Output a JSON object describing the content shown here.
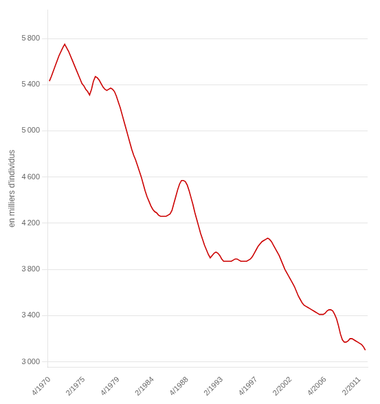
{
  "chart_data": {
    "type": "line",
    "ylabel": "en milliers d'individus",
    "color": "#cc0000",
    "grid": "y",
    "xlim": [
      1970.5,
      2012.3
    ],
    "xticks": [
      {
        "value": 1970.75,
        "label": "4/1970"
      },
      {
        "value": 1975.25,
        "label": "2/1975"
      },
      {
        "value": 1979.75,
        "label": "4/1979"
      },
      {
        "value": 1984.25,
        "label": "2/1984"
      },
      {
        "value": 1988.75,
        "label": "4/1988"
      },
      {
        "value": 1993.25,
        "label": "2/1993"
      },
      {
        "value": 1997.75,
        "label": "4/1997"
      },
      {
        "value": 2002.25,
        "label": "2/2002"
      },
      {
        "value": 2006.75,
        "label": "4/2006"
      },
      {
        "value": 2011.25,
        "label": "2/2011"
      }
    ],
    "ylim": [
      2950,
      6050
    ],
    "yticks": [
      {
        "value": 3000,
        "label": "3 000"
      },
      {
        "value": 3400,
        "label": "3 400"
      },
      {
        "value": 3800,
        "label": "3 800"
      },
      {
        "value": 4200,
        "label": "4 200"
      },
      {
        "value": 4600,
        "label": "4 600"
      },
      {
        "value": 5000,
        "label": "5 000"
      },
      {
        "value": 5400,
        "label": "5 400"
      },
      {
        "value": 5800,
        "label": "5 800"
      }
    ],
    "x": [
      1970.75,
      1971.0,
      1971.5,
      1972.0,
      1972.5,
      1972.75,
      1973.25,
      1973.75,
      1974.25,
      1974.75,
      1975.0,
      1975.25,
      1975.5,
      1975.75,
      1976.0,
      1976.25,
      1976.5,
      1976.75,
      1977.0,
      1977.25,
      1977.5,
      1977.75,
      1978.0,
      1978.25,
      1978.5,
      1978.75,
      1979.0,
      1979.25,
      1979.5,
      1979.75,
      1980.0,
      1980.25,
      1980.5,
      1980.75,
      1981.0,
      1981.25,
      1981.5,
      1981.75,
      1982.0,
      1982.25,
      1982.5,
      1982.75,
      1983.0,
      1983.25,
      1983.5,
      1983.75,
      1984.0,
      1984.25,
      1984.5,
      1984.75,
      1985.0,
      1985.25,
      1985.5,
      1985.75,
      1986.0,
      1986.25,
      1986.5,
      1986.75,
      1987.0,
      1987.25,
      1987.5,
      1987.75,
      1988.0,
      1988.25,
      1988.5,
      1988.75,
      1989.0,
      1989.25,
      1989.5,
      1989.75,
      1990.0,
      1990.25,
      1990.5,
      1990.75,
      1991.0,
      1991.25,
      1991.5,
      1991.75,
      1992.0,
      1992.25,
      1992.5,
      1992.75,
      1993.0,
      1993.25,
      1993.5,
      1993.75,
      1994.0,
      1994.25,
      1994.5,
      1994.75,
      1995.0,
      1995.25,
      1995.5,
      1995.75,
      1996.0,
      1996.25,
      1996.5,
      1996.75,
      1997.0,
      1997.25,
      1997.5,
      1997.75,
      1998.0,
      1998.25,
      1998.5,
      1998.75,
      1999.0,
      1999.25,
      1999.5,
      1999.75,
      2000.0,
      2000.25,
      2000.5,
      2000.75,
      2001.0,
      2001.25,
      2001.5,
      2001.75,
      2002.0,
      2002.25,
      2002.5,
      2002.75,
      2003.0,
      2003.25,
      2003.5,
      2003.75,
      2004.0,
      2004.25,
      2004.5,
      2004.75,
      2005.0,
      2005.25,
      2005.5,
      2005.75,
      2006.0,
      2006.25,
      2006.5,
      2006.75,
      2007.0,
      2007.25,
      2007.5,
      2007.75,
      2008.0,
      2008.25,
      2008.5,
      2008.75,
      2009.0,
      2009.25,
      2009.5,
      2009.75,
      2010.0,
      2010.25,
      2010.5,
      2010.75,
      2011.0,
      2011.25,
      2011.5,
      2011.75,
      2012.0
    ],
    "values": [
      5430,
      5470,
      5560,
      5650,
      5720,
      5750,
      5690,
      5610,
      5530,
      5450,
      5410,
      5390,
      5360,
      5340,
      5310,
      5360,
      5430,
      5470,
      5460,
      5440,
      5410,
      5380,
      5360,
      5350,
      5360,
      5370,
      5360,
      5340,
      5300,
      5250,
      5200,
      5140,
      5080,
      5020,
      4960,
      4900,
      4840,
      4790,
      4750,
      4700,
      4650,
      4600,
      4540,
      4480,
      4430,
      4390,
      4350,
      4320,
      4300,
      4290,
      4270,
      4260,
      4260,
      4260,
      4260,
      4270,
      4280,
      4310,
      4370,
      4430,
      4490,
      4540,
      4570,
      4570,
      4560,
      4530,
      4480,
      4420,
      4360,
      4290,
      4230,
      4170,
      4110,
      4060,
      4010,
      3970,
      3930,
      3900,
      3920,
      3940,
      3950,
      3940,
      3920,
      3890,
      3870,
      3870,
      3870,
      3870,
      3870,
      3880,
      3890,
      3890,
      3880,
      3870,
      3870,
      3870,
      3870,
      3880,
      3890,
      3910,
      3940,
      3970,
      4000,
      4020,
      4040,
      4050,
      4060,
      4070,
      4060,
      4040,
      4010,
      3980,
      3950,
      3920,
      3880,
      3840,
      3800,
      3770,
      3740,
      3710,
      3680,
      3650,
      3610,
      3570,
      3540,
      3510,
      3490,
      3480,
      3470,
      3460,
      3450,
      3440,
      3430,
      3420,
      3410,
      3410,
      3410,
      3420,
      3440,
      3450,
      3450,
      3440,
      3410,
      3370,
      3310,
      3240,
      3190,
      3170,
      3170,
      3180,
      3200,
      3200,
      3190,
      3180,
      3170,
      3160,
      3150,
      3130,
      3100
    ]
  }
}
